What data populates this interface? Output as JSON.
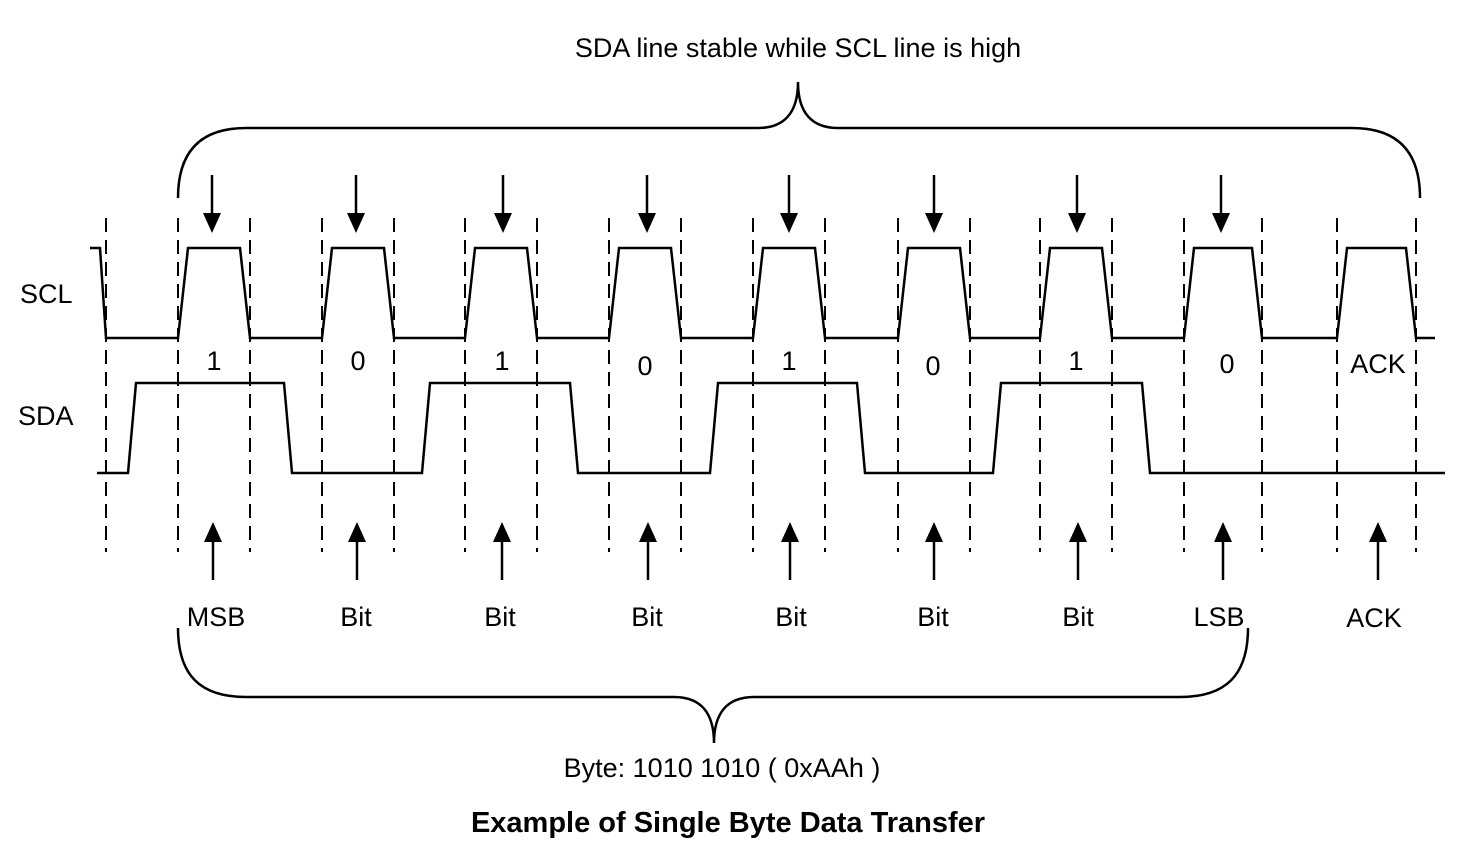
{
  "top_annotation": "SDA line stable while SCL line is high",
  "signals": {
    "scl_label": "SCL",
    "sda_label": "SDA"
  },
  "bits": [
    {
      "value": "1",
      "name": "MSB",
      "sda_high": true
    },
    {
      "value": "0",
      "name": "Bit",
      "sda_high": false
    },
    {
      "value": "1",
      "name": "Bit",
      "sda_high": true
    },
    {
      "value": "0",
      "name": "Bit",
      "sda_high": false
    },
    {
      "value": "1",
      "name": "Bit",
      "sda_high": true
    },
    {
      "value": "0",
      "name": "Bit",
      "sda_high": false
    },
    {
      "value": "1",
      "name": "Bit",
      "sda_high": true
    },
    {
      "value": "0",
      "name": "LSB",
      "sda_high": false
    }
  ],
  "ack": {
    "value": "ACK",
    "name": "ACK"
  },
  "byte_annotation": "Byte: 1010 1010 ( 0xAAh )",
  "caption": "Example of Single Byte Data Transfer"
}
